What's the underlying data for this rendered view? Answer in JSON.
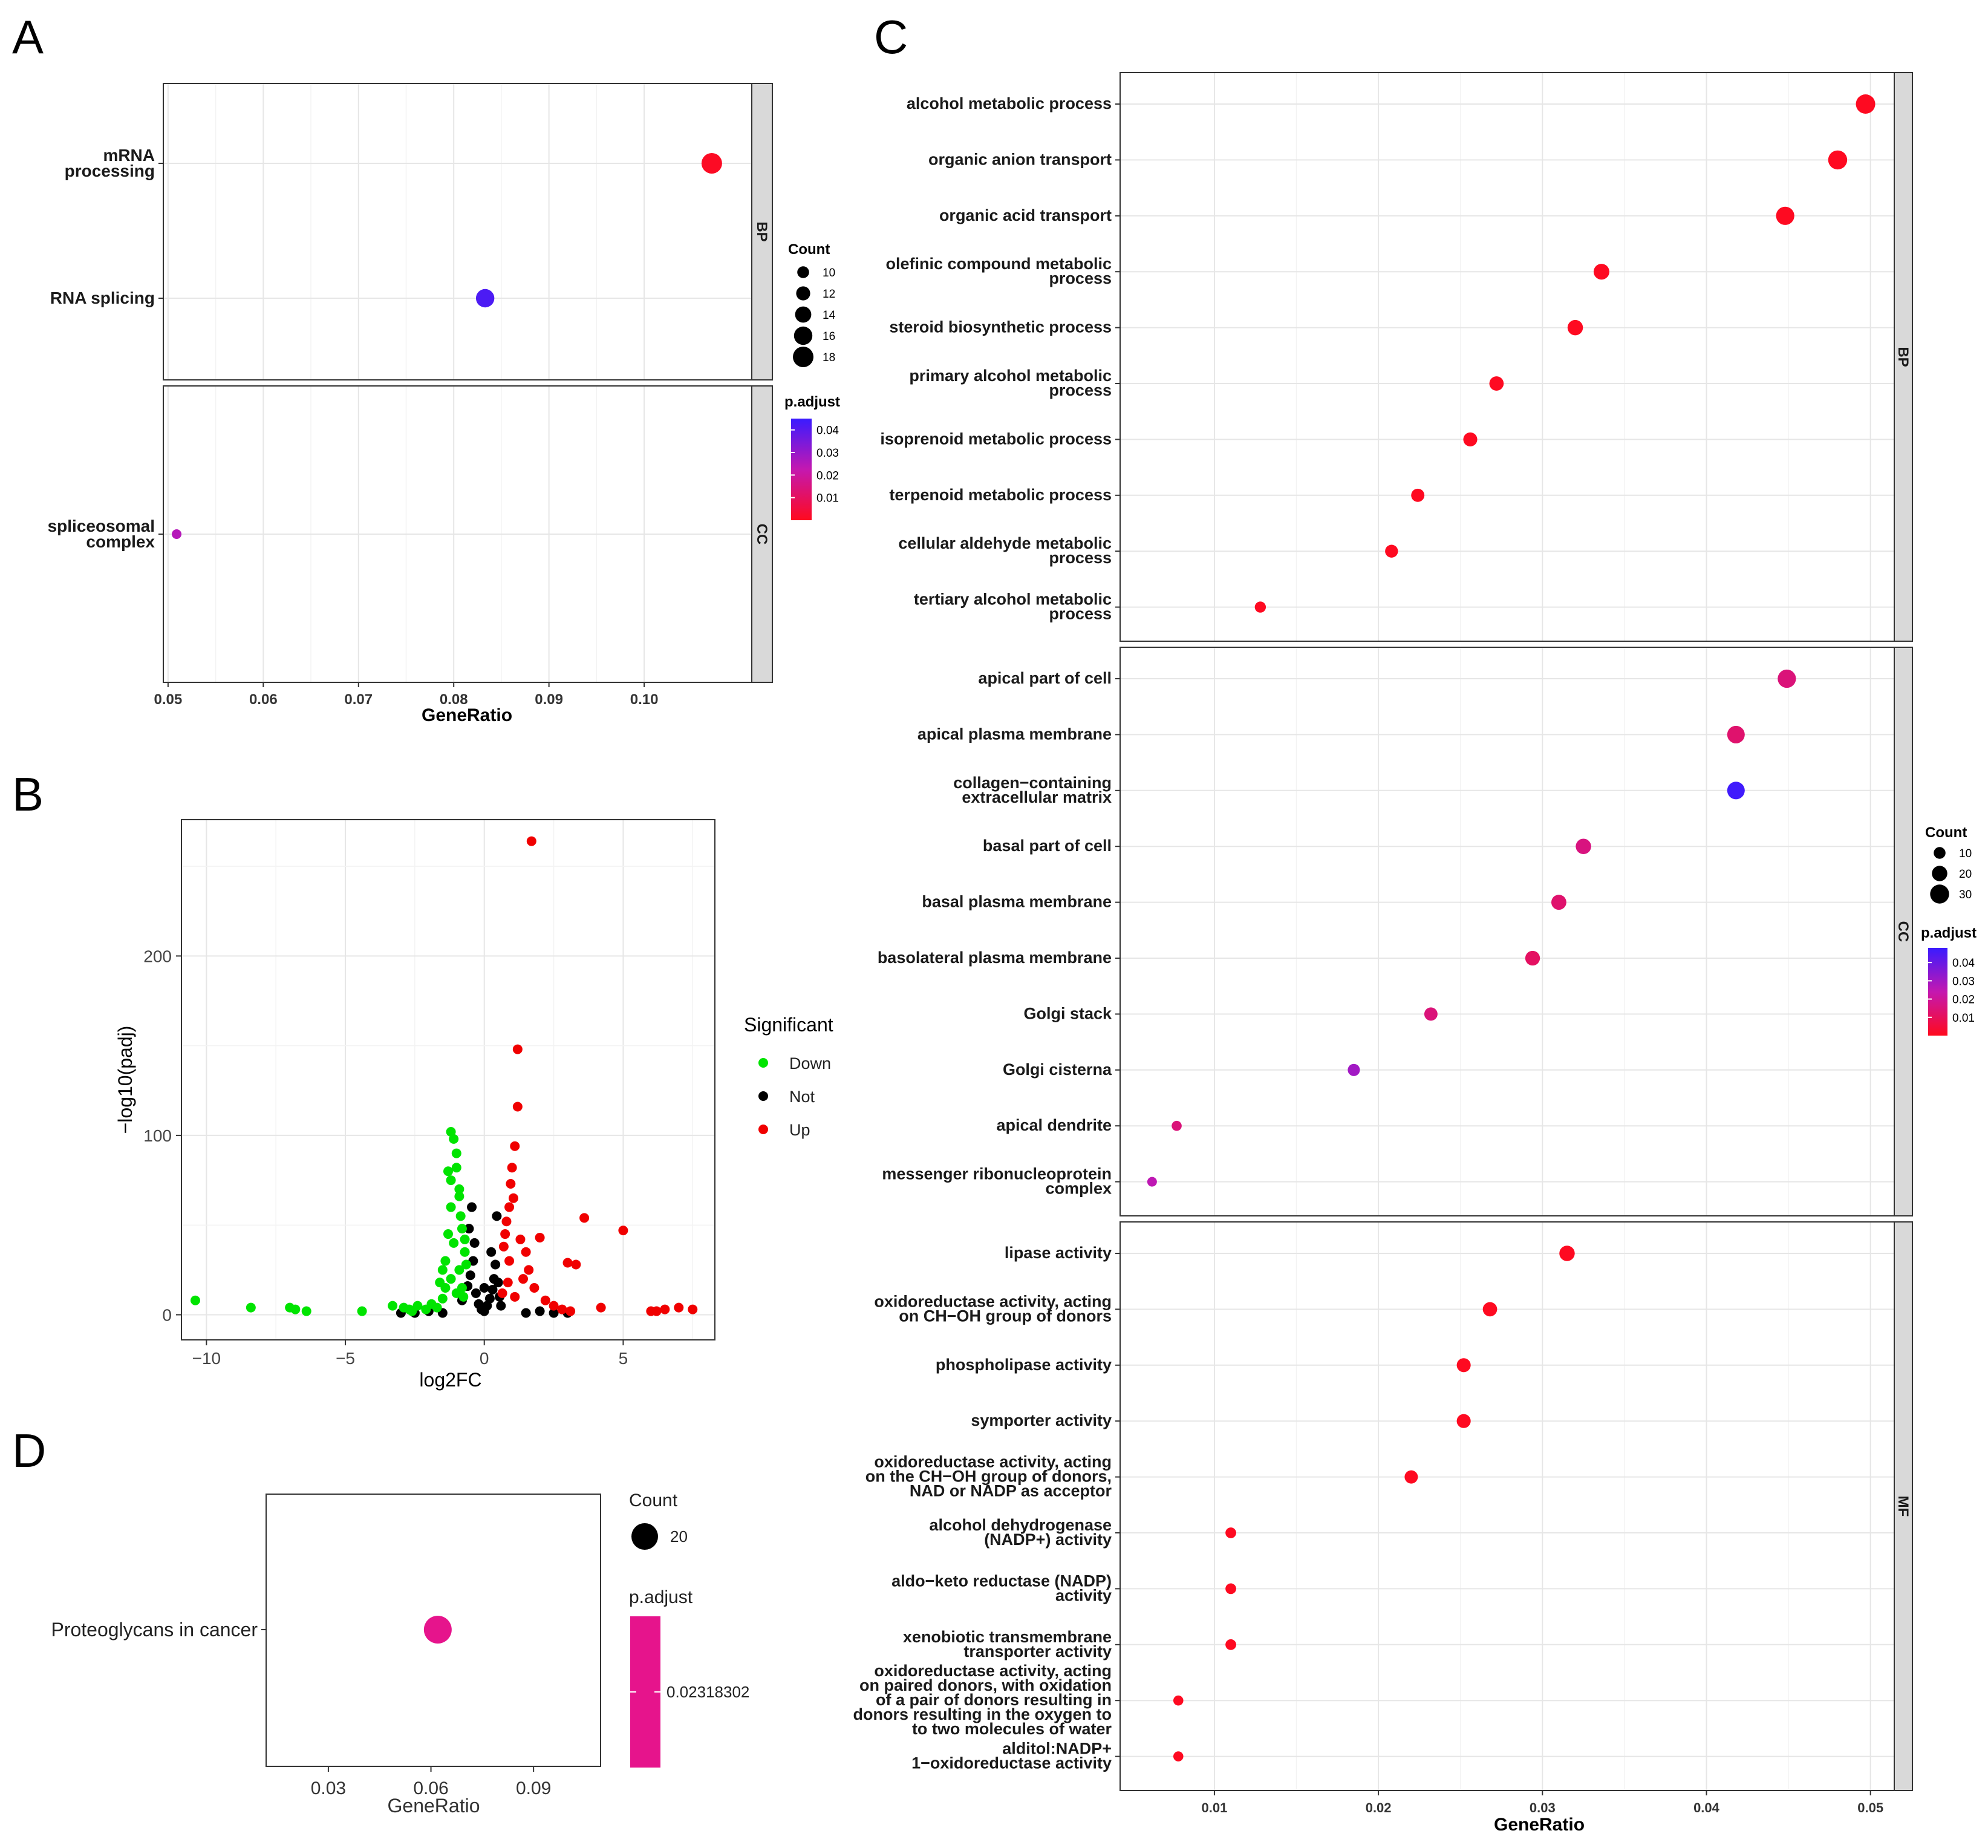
{
  "panel_labels": {
    "a": "A",
    "b": "B",
    "c": "C",
    "d": "D"
  },
  "chart_data": [
    {
      "id": "A",
      "type": "scatter",
      "subtype": "go-dotplot",
      "xlabel": "GeneRatio",
      "xticks": [
        "0.05",
        "0.06",
        "0.07",
        "0.08",
        "0.09",
        "0.10"
      ],
      "xlim": [
        0.0495,
        0.1113
      ],
      "facets": [
        {
          "name": "BP",
          "terms": [
            {
              "lines": [
                "mRNA",
                "processing"
              ],
              "x": 0.1071,
              "count": 18,
              "padj": 0.001
            },
            {
              "lines": [
                "RNA splicing"
              ],
              "x": 0.0833,
              "count": 16,
              "padj": 0.042
            }
          ]
        },
        {
          "name": "CC",
          "terms": [
            {
              "lines": [
                "spliceosomal",
                "complex"
              ],
              "x": 0.0509,
              "count": 8,
              "padj": 0.025
            }
          ]
        }
      ],
      "legend": {
        "count_title": "Count",
        "count_values": [
          10,
          12,
          14,
          16,
          18
        ],
        "color_title": "p.adjust",
        "color_ticks": [
          "0.04",
          "0.03",
          "0.02",
          "0.01"
        ],
        "color_range": [
          0.0,
          0.045
        ]
      }
    },
    {
      "id": "B",
      "type": "scatter",
      "subtype": "volcano",
      "xlabel": "log2FC",
      "ylabel": "−log10(padj)",
      "xticks": [
        "−10",
        "−5",
        "0",
        "5"
      ],
      "xtick_values": [
        -10,
        -5,
        0,
        5
      ],
      "yticks": [
        "0",
        "100",
        "200"
      ],
      "ytick_values": [
        0,
        100,
        200
      ],
      "xlim": [
        -10.9,
        8.3
      ],
      "ylim": [
        -14,
        276
      ],
      "legend": {
        "title": "Significant",
        "entries": [
          "Down",
          "Not",
          "Up"
        ],
        "colors": [
          "#00e400",
          "#000000",
          "#f00000"
        ]
      },
      "points": {
        "Down": [
          [
            -10.4,
            8
          ],
          [
            -8.4,
            4
          ],
          [
            -7.0,
            4
          ],
          [
            -6.8,
            3
          ],
          [
            -6.4,
            2
          ],
          [
            -4.4,
            2
          ],
          [
            -3.3,
            5
          ],
          [
            -2.9,
            4
          ],
          [
            -2.7,
            3
          ],
          [
            -2.6,
            2
          ],
          [
            -2.4,
            5
          ],
          [
            -2.1,
            3
          ],
          [
            -1.9,
            6
          ],
          [
            -1.7,
            4
          ],
          [
            -1.5,
            9
          ],
          [
            -1.4,
            30
          ],
          [
            -1.3,
            45
          ],
          [
            -1.2,
            60
          ],
          [
            -1.2,
            75
          ],
          [
            -1.2,
            102
          ],
          [
            -1.1,
            98
          ],
          [
            -1.0,
            90
          ],
          [
            -1.3,
            80
          ],
          [
            -1.0,
            82
          ],
          [
            -0.9,
            70
          ],
          [
            -0.9,
            66
          ],
          [
            -0.85,
            55
          ],
          [
            -0.8,
            48
          ],
          [
            -1.1,
            40
          ],
          [
            -0.7,
            35
          ],
          [
            -0.9,
            25
          ],
          [
            -1.2,
            20
          ],
          [
            -0.8,
            15
          ],
          [
            -1.0,
            12
          ],
          [
            -0.75,
            10
          ],
          [
            -1.4,
            15
          ],
          [
            -1.6,
            18
          ],
          [
            -0.7,
            42
          ],
          [
            -0.65,
            28
          ],
          [
            -1.5,
            25
          ]
        ],
        "Not": [
          [
            -3.0,
            1
          ],
          [
            -2.5,
            1
          ],
          [
            -2.0,
            2
          ],
          [
            -1.5,
            1
          ],
          [
            -0.8,
            8
          ],
          [
            -0.6,
            16
          ],
          [
            -0.5,
            22
          ],
          [
            -0.4,
            30
          ],
          [
            -0.3,
            12
          ],
          [
            -0.2,
            6
          ],
          [
            -0.1,
            3
          ],
          [
            0.0,
            2
          ],
          [
            0.1,
            5
          ],
          [
            0.2,
            9
          ],
          [
            0.3,
            14
          ],
          [
            0.35,
            20
          ],
          [
            0.4,
            28
          ],
          [
            0.45,
            55
          ],
          [
            0.5,
            18
          ],
          [
            0.55,
            10
          ],
          [
            0.6,
            5
          ],
          [
            -0.45,
            60
          ],
          [
            -0.35,
            40
          ],
          [
            0.25,
            35
          ],
          [
            -0.55,
            48
          ],
          [
            0.0,
            15
          ],
          [
            1.5,
            1
          ],
          [
            2.0,
            2
          ],
          [
            2.5,
            1
          ],
          [
            3.0,
            1
          ]
        ],
        "Up": [
          [
            1.7,
            264
          ],
          [
            1.2,
            148
          ],
          [
            1.2,
            116
          ],
          [
            1.1,
            94
          ],
          [
            1.0,
            82
          ],
          [
            0.95,
            73
          ],
          [
            1.05,
            65
          ],
          [
            0.9,
            60
          ],
          [
            0.8,
            52
          ],
          [
            0.75,
            45
          ],
          [
            1.3,
            42
          ],
          [
            0.7,
            38
          ],
          [
            1.5,
            35
          ],
          [
            0.9,
            30
          ],
          [
            1.6,
            25
          ],
          [
            2.0,
            43
          ],
          [
            3.6,
            54
          ],
          [
            5.0,
            47
          ],
          [
            3.0,
            29
          ],
          [
            3.3,
            28
          ],
          [
            2.5,
            5
          ],
          [
            2.8,
            3
          ],
          [
            3.1,
            2
          ],
          [
            4.2,
            4
          ],
          [
            6.0,
            2
          ],
          [
            6.2,
            2
          ],
          [
            6.5,
            3
          ],
          [
            7.0,
            4
          ],
          [
            7.5,
            3
          ],
          [
            1.8,
            15
          ],
          [
            2.2,
            8
          ],
          [
            1.4,
            20
          ],
          [
            0.65,
            12
          ],
          [
            0.85,
            18
          ],
          [
            1.1,
            10
          ]
        ]
      }
    },
    {
      "id": "C",
      "type": "scatter",
      "subtype": "go-dotplot",
      "xlabel": "GeneRatio",
      "xticks": [
        "0.01",
        "0.02",
        "0.03",
        "0.04",
        "0.05"
      ],
      "xlim": [
        0.00425,
        0.05145
      ],
      "facets": [
        {
          "name": "BP",
          "terms": [
            {
              "lines": [
                "alcohol metabolic process"
              ],
              "x": 0.0497,
              "count": 31,
              "padj": 0.0005
            },
            {
              "lines": [
                "organic anion transport"
              ],
              "x": 0.048,
              "count": 30,
              "padj": 0.0005
            },
            {
              "lines": [
                "organic acid transport"
              ],
              "x": 0.0448,
              "count": 28,
              "padj": 0.0005
            },
            {
              "lines": [
                "olefinic compound metabolic",
                "process"
              ],
              "x": 0.0336,
              "count": 21,
              "padj": 0.0005
            },
            {
              "lines": [
                "steroid biosynthetic process"
              ],
              "x": 0.032,
              "count": 20,
              "padj": 0.0005
            },
            {
              "lines": [
                "primary alcohol metabolic",
                "process"
              ],
              "x": 0.0272,
              "count": 17,
              "padj": 0.0005
            },
            {
              "lines": [
                "isoprenoid metabolic process"
              ],
              "x": 0.0256,
              "count": 16,
              "padj": 0.0005
            },
            {
              "lines": [
                "terpenoid metabolic process"
              ],
              "x": 0.0224,
              "count": 14,
              "padj": 0.0005
            },
            {
              "lines": [
                "cellular aldehyde metabolic",
                "process"
              ],
              "x": 0.0208,
              "count": 13,
              "padj": 0.0005
            },
            {
              "lines": [
                "tertiary alcohol metabolic",
                "process"
              ],
              "x": 0.0128,
              "count": 8,
              "padj": 0.0005
            }
          ]
        },
        {
          "name": "CC",
          "terms": [
            {
              "lines": [
                "apical part of cell"
              ],
              "x": 0.0449,
              "count": 28,
              "padj": 0.015
            },
            {
              "lines": [
                "apical plasma membrane"
              ],
              "x": 0.0418,
              "count": 26,
              "padj": 0.013
            },
            {
              "lines": [
                "collagen−containing",
                "extracellular matrix"
              ],
              "x": 0.0418,
              "count": 26,
              "padj": 0.047
            },
            {
              "lines": [
                "basal part of cell"
              ],
              "x": 0.0325,
              "count": 20,
              "padj": 0.016
            },
            {
              "lines": [
                "basal plasma membrane"
              ],
              "x": 0.031,
              "count": 19,
              "padj": 0.013
            },
            {
              "lines": [
                "basolateral plasma membrane"
              ],
              "x": 0.0294,
              "count": 18,
              "padj": 0.011
            },
            {
              "lines": [
                "Golgi stack"
              ],
              "x": 0.0232,
              "count": 14,
              "padj": 0.015
            },
            {
              "lines": [
                "Golgi cisterna"
              ],
              "x": 0.0185,
              "count": 11,
              "padj": 0.03
            },
            {
              "lines": [
                "apical dendrite"
              ],
              "x": 0.0077,
              "count": 5,
              "padj": 0.015
            },
            {
              "lines": [
                "messenger ribonucleoprotein",
                "complex"
              ],
              "x": 0.0062,
              "count": 4,
              "padj": 0.025
            }
          ]
        },
        {
          "name": "MF",
          "terms": [
            {
              "lines": [
                "lipase activity"
              ],
              "x": 0.0315,
              "count": 20,
              "padj": 0.0005
            },
            {
              "lines": [
                "oxidoreductase activity, acting",
                "on CH−OH group of donors"
              ],
              "x": 0.0268,
              "count": 17,
              "padj": 0.0005
            },
            {
              "lines": [
                "phospholipase activity"
              ],
              "x": 0.0252,
              "count": 16,
              "padj": 0.0005
            },
            {
              "lines": [
                "symporter activity"
              ],
              "x": 0.0252,
              "count": 16,
              "padj": 0.0005
            },
            {
              "lines": [
                "oxidoreductase activity, acting",
                "on the CH−OH group of donors,",
                "NAD or NADP as acceptor"
              ],
              "x": 0.022,
              "count": 14,
              "padj": 0.0005
            },
            {
              "lines": [
                "alcohol dehydrogenase",
                "(NADP+) activity"
              ],
              "x": 0.011,
              "count": 7,
              "padj": 0.0005
            },
            {
              "lines": [
                "aldo−keto reductase (NADP)",
                "activity"
              ],
              "x": 0.011,
              "count": 7,
              "padj": 0.0005
            },
            {
              "lines": [
                "xenobiotic transmembrane",
                "transporter activity"
              ],
              "x": 0.011,
              "count": 7,
              "padj": 0.0005
            },
            {
              "lines": [
                "oxidoreductase activity, acting",
                "on paired donors, with oxidation",
                "of a pair of donors resulting in",
                "donors resulting in the oxygen to",
                "to two molecules of water"
              ],
              "x": 0.0078,
              "count": 5,
              "padj": 0.0005
            },
            {
              "lines": [
                "alditol:NADP+",
                "1−oxidoreductase activity"
              ],
              "x": 0.0078,
              "count": 5,
              "padj": 0.0005
            }
          ]
        }
      ],
      "legend": {
        "count_title": "Count",
        "count_values": [
          10,
          20,
          30
        ],
        "color_title": "p.adjust",
        "color_ticks": [
          "0.04",
          "0.03",
          "0.02",
          "0.01"
        ],
        "color_range": [
          0.0,
          0.048
        ]
      }
    },
    {
      "id": "D",
      "type": "scatter",
      "subtype": "kegg-dotplot",
      "xlabel": "GeneRatio",
      "xticks": [
        "0.03",
        "0.06",
        "0.09"
      ],
      "xtick_values": [
        0.03,
        0.06,
        0.09
      ],
      "xlim": [
        0.0118,
        0.1096
      ],
      "terms": [
        {
          "name": "Proteoglycans in cancer",
          "x": 0.062,
          "count": 20,
          "padj": 0.02318302
        }
      ],
      "legend": {
        "count_title": "Count",
        "count_values": [
          20
        ],
        "color_title": "p.adjust",
        "color_ticks": [
          "0.02318302"
        ],
        "color": "#e6148c"
      }
    }
  ]
}
